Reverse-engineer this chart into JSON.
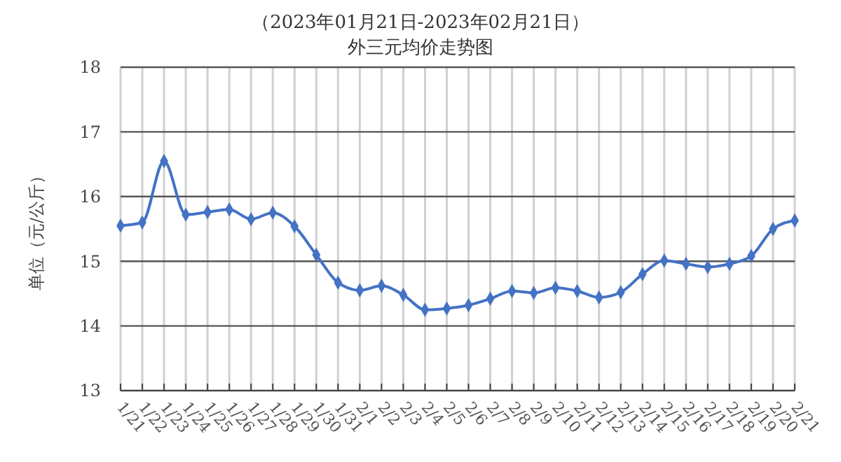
{
  "chart_data": {
    "type": "line",
    "title": "（2023年01月21日-2023年02月21日）",
    "subtitle": "外三元均价走势图",
    "ylabel": "单位（元/公斤）",
    "categories": [
      "1/21",
      "1/22",
      "1/23",
      "1/24",
      "1/25",
      "1/26",
      "1/27",
      "1/28",
      "1/29",
      "1/30",
      "1/31",
      "2/1",
      "2/2",
      "2/3",
      "2/4",
      "2/5",
      "2/6",
      "2/7",
      "2/8",
      "2/9",
      "2/10",
      "2/11",
      "2/12",
      "2/13",
      "2/14",
      "2/15",
      "2/16",
      "2/17",
      "2/18",
      "2/19",
      "2/20",
      "2/21"
    ],
    "series": [
      {
        "color": "#4472c4",
        "values": [
          15.55,
          15.6,
          16.55,
          15.72,
          15.76,
          15.8,
          15.65,
          15.75,
          15.54,
          15.1,
          14.67,
          14.55,
          14.62,
          14.48,
          14.25,
          14.27,
          14.32,
          14.42,
          14.54,
          14.51,
          14.59,
          14.54,
          14.44,
          14.52,
          14.8,
          15.01,
          14.96,
          14.91,
          14.96,
          15.08,
          15.5,
          15.63
        ]
      }
    ],
    "ylim": [
      13,
      18
    ],
    "yticks": [
      13,
      14,
      15,
      16,
      17,
      18
    ],
    "grid": true,
    "marker": "diamond",
    "line_style": "solid"
  }
}
